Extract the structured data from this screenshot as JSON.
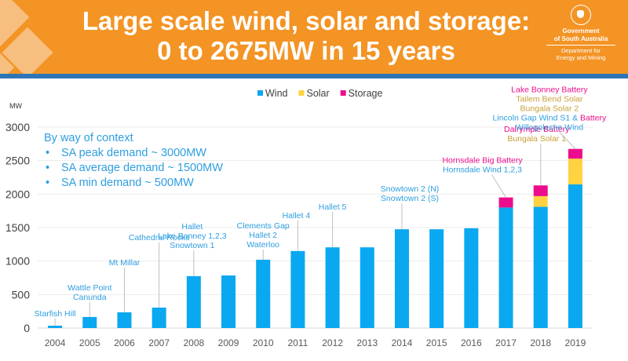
{
  "header": {
    "title_line1": "Large scale wind, solar and storage:",
    "title_line2": "0 to 2675MW in 15 years",
    "logo": {
      "icon": "state-crest-icon",
      "line1": "Government",
      "line2": "of South Australia",
      "line3": "Department for",
      "line4": "Energy and Mining"
    },
    "colors": {
      "banner": "#f39425",
      "stripe": "#2e75b6"
    }
  },
  "context": {
    "heading": "By way of context",
    "items": [
      "SA peak demand ~ 3000MW",
      "SA average demand ~ 1500MW",
      "SA min demand ~ 500MW"
    ]
  },
  "chart_data": {
    "type": "bar",
    "stacked": true,
    "title": "",
    "xlabel": "",
    "ylabel": "MW",
    "ylim": [
      0,
      3000
    ],
    "yticks": [
      0,
      500,
      1000,
      1500,
      2000,
      2500,
      3000
    ],
    "grid": true,
    "legend_position": "top-center",
    "categories": [
      "2004",
      "2005",
      "2006",
      "2007",
      "2008",
      "2009",
      "2010",
      "2011",
      "2012",
      "2013",
      "2014",
      "2015",
      "2016",
      "2017",
      "2018",
      "2019"
    ],
    "series": [
      {
        "name": "Wind",
        "color": "#0aa8f0",
        "values": [
          35,
          165,
          235,
          305,
          775,
          785,
          1020,
          1150,
          1205,
          1205,
          1475,
          1475,
          1490,
          1800,
          1810,
          2145
        ]
      },
      {
        "name": "Solar",
        "color": "#ffd23f",
        "values": [
          0,
          0,
          0,
          0,
          0,
          0,
          0,
          0,
          0,
          0,
          0,
          0,
          0,
          0,
          160,
          385
        ]
      },
      {
        "name": "Storage",
        "color": "#ec0d8c",
        "values": [
          0,
          0,
          0,
          0,
          0,
          0,
          0,
          0,
          0,
          0,
          0,
          0,
          0,
          150,
          160,
          145
        ]
      }
    ],
    "annotation_colors": {
      "wind": "#2e9ee0",
      "solar": "#c9a03a",
      "storage": "#ec0d8c"
    },
    "annotations": [
      {
        "category": "2004",
        "lines": [
          {
            "text": "Starfish Hill",
            "type": "wind"
          }
        ]
      },
      {
        "category": "2005",
        "lines": [
          {
            "text": "Wattle Point",
            "type": "wind"
          },
          {
            "text": "Canunda",
            "type": "wind"
          }
        ]
      },
      {
        "category": "2006",
        "lines": [
          {
            "text": "Mt Millar",
            "type": "wind"
          }
        ]
      },
      {
        "category": "2007",
        "lines": [
          {
            "text": "Cathedral Rocks",
            "type": "wind"
          }
        ]
      },
      {
        "category": "2008",
        "lines": [
          {
            "text": "Hallet",
            "type": "wind"
          },
          {
            "text": "Lake Bonney 1,2,3",
            "type": "wind"
          },
          {
            "text": "Snowtown 1",
            "type": "wind"
          }
        ]
      },
      {
        "category": "2010",
        "lines": [
          {
            "text": "Clements Gap",
            "type": "wind"
          },
          {
            "text": "Hallet 2",
            "type": "wind"
          },
          {
            "text": "Waterloo",
            "type": "wind"
          }
        ]
      },
      {
        "category": "2011",
        "lines": [
          {
            "text": "Hallet 4",
            "type": "wind"
          }
        ]
      },
      {
        "category": "2012",
        "lines": [
          {
            "text": "Hallet 5",
            "type": "wind"
          }
        ]
      },
      {
        "category": "2014",
        "lines": [
          {
            "text": "Snowtown 2 (N)",
            "type": "wind"
          },
          {
            "text": "Snowtown 2 (S)",
            "type": "wind"
          }
        ]
      },
      {
        "category": "2017",
        "lines": [
          {
            "text": "Hornsdale Big Battery",
            "type": "storage"
          },
          {
            "text": "Hornsdale Wind 1,2,3",
            "type": "wind"
          }
        ]
      },
      {
        "category": "2018",
        "lines": [
          {
            "text": "Dalrymple Battery",
            "type": "storage"
          },
          {
            "text": "Bungala Solar 1",
            "type": "solar"
          }
        ]
      },
      {
        "category": "2019",
        "lines": [
          {
            "text": "Lake Bonney Battery",
            "type": "storage"
          },
          {
            "text": "Tailem Bend Solar",
            "type": "solar"
          },
          {
            "text": "Bungala Solar 2",
            "type": "solar"
          },
          {
            "text": "Lincoln Gap Wind S1 & ",
            "type": "wind",
            "suffix": "Battery",
            "suffix_type": "storage"
          },
          {
            "text": "Willogoleche Wind",
            "type": "wind"
          }
        ]
      }
    ]
  }
}
